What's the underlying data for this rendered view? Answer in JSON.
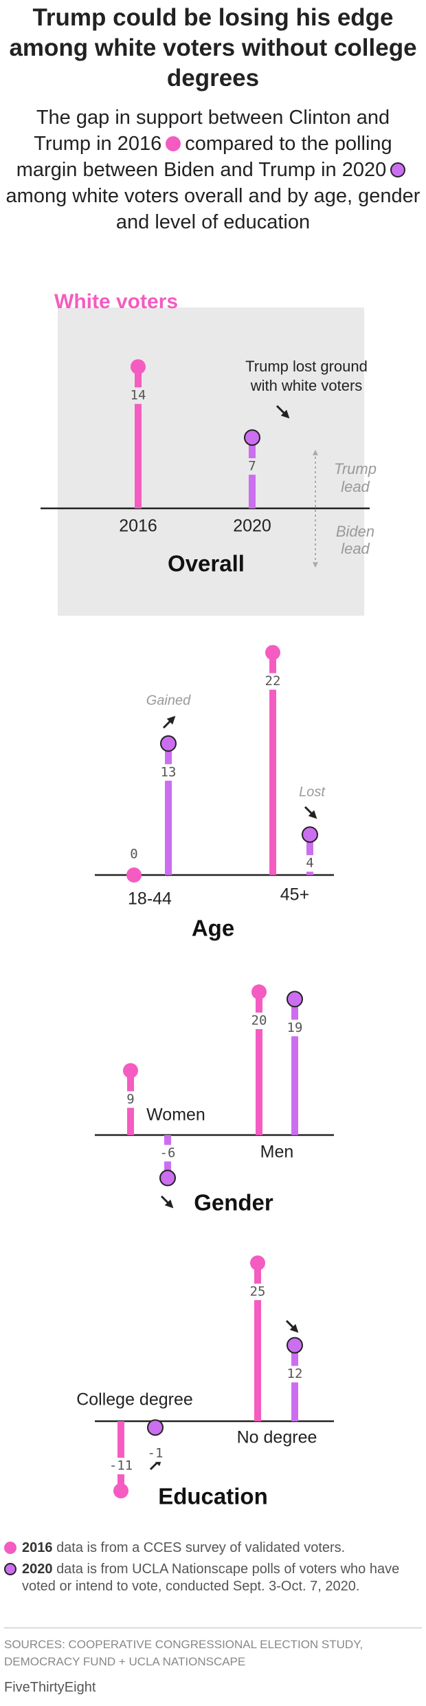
{
  "title": "Trump could be losing his edge among white voters without college degrees",
  "subtitle": [
    "The gap in support between Clinton and Trump in 2016",
    "compared to the polling margin between Biden and Trump in 2020",
    "among white voters overall and by age, gender and level of education"
  ],
  "chart_data": [
    {
      "type": "bar",
      "label": "White voters",
      "title": "Overall",
      "categories": [
        null
      ],
      "series": [
        {
          "name": "2016",
          "color": "#f45cc1",
          "values": [
            14
          ]
        },
        {
          "name": "2020",
          "color": "#cc6ef0",
          "values": [
            7
          ]
        }
      ],
      "annotation": [
        "Trump lost ground",
        "with white voters"
      ],
      "direction_labels": [
        [
          "Trump",
          "lead"
        ],
        [
          "Biden",
          "lead"
        ]
      ]
    },
    {
      "type": "bar",
      "title": "Age",
      "categories": [
        "18-44",
        "45+"
      ],
      "series": [
        {
          "color": "#f45cc1",
          "values": [
            0,
            22
          ]
        },
        {
          "color": "#cc6ef0",
          "values": [
            13,
            4
          ]
        }
      ],
      "annotations": [
        "Gained",
        "Lost"
      ]
    },
    {
      "type": "bar",
      "title": "Gender",
      "categories": [
        "Women",
        "Men"
      ],
      "series": [
        {
          "color": "#f45cc1",
          "values": [
            9,
            20
          ]
        },
        {
          "color": "#cc6ef0",
          "values": [
            -6,
            19
          ]
        }
      ]
    },
    {
      "type": "bar",
      "title": "Education",
      "categories": [
        "College degree",
        "No degree"
      ],
      "series": [
        {
          "color": "#f45cc1",
          "values": [
            -11,
            25
          ]
        },
        {
          "color": "#cc6ef0",
          "values": [
            -1,
            12
          ]
        }
      ]
    }
  ],
  "legend": [
    {
      "label": "2016",
      "text": "data is from a CCES survey of validated voters."
    },
    {
      "label": "2020",
      "text": "data is from UCLA Nationscape polls of voters who have voted or intend to vote, conducted Sept. 3-Oct. 7, 2020."
    }
  ],
  "sources": "SOURCES: COOPERATIVE CONGRESSIONAL ELECTION STUDY, DEMOCRACY FUND + UCLA NATIONSCAPE",
  "footer": "FiveThirtyEight"
}
